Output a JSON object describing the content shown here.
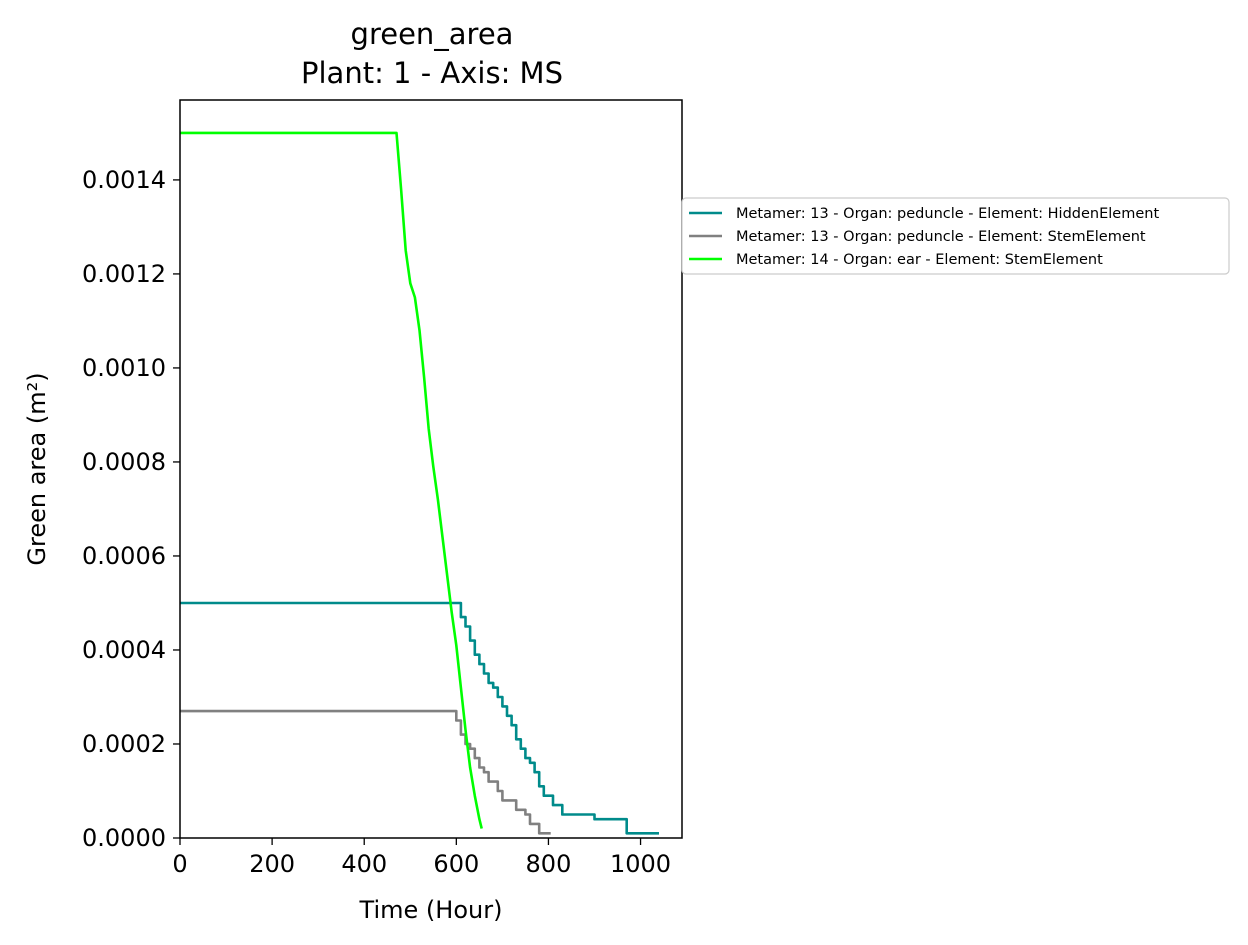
{
  "chart_data": {
    "type": "line",
    "title": "green_area",
    "subtitle": "Plant: 1 - Axis: MS",
    "xlabel": "Time (Hour)",
    "ylabel": "Green area (m²)",
    "xlim": [
      0,
      1090
    ],
    "ylim": [
      0,
      0.00157
    ],
    "xticks": [
      0,
      200,
      400,
      600,
      800,
      1000
    ],
    "xtick_labels": [
      "0",
      "200",
      "400",
      "600",
      "800",
      "1000"
    ],
    "yticks": [
      0,
      0.0002,
      0.0004,
      0.0006,
      0.0008,
      0.001,
      0.0012,
      0.0014
    ],
    "ytick_labels": [
      "0.0000",
      "0.0002",
      "0.0004",
      "0.0006",
      "0.0008",
      "0.0010",
      "0.0012",
      "0.0014"
    ],
    "grid": false,
    "legend_placement": "outside-right",
    "series": [
      {
        "name": "Metamer: 13 - Organ: peduncle - Element: HiddenElement",
        "color": "#008b8b",
        "step": true,
        "x": [
          0,
          600,
          610,
          620,
          630,
          640,
          650,
          660,
          670,
          680,
          690,
          700,
          710,
          720,
          730,
          740,
          750,
          760,
          770,
          780,
          790,
          810,
          830,
          900,
          970,
          1040
        ],
        "y": [
          0.0005,
          0.0005,
          0.00047,
          0.00045,
          0.00042,
          0.00039,
          0.00037,
          0.00035,
          0.00033,
          0.00032,
          0.0003,
          0.00028,
          0.00026,
          0.00024,
          0.00021,
          0.00019,
          0.00017,
          0.00016,
          0.00014,
          0.00011,
          9e-05,
          7e-05,
          5e-05,
          4e-05,
          1e-05,
          1e-05
        ]
      },
      {
        "name": "Metamer: 13 - Organ: peduncle - Element: StemElement",
        "color": "#808080",
        "step": true,
        "x": [
          0,
          590,
          600,
          610,
          620,
          630,
          640,
          650,
          660,
          670,
          690,
          700,
          710,
          730,
          750,
          760,
          770,
          780,
          805
        ],
        "y": [
          0.00027,
          0.00027,
          0.00025,
          0.00022,
          0.0002,
          0.00019,
          0.00017,
          0.00015,
          0.00014,
          0.00012,
          0.0001,
          8e-05,
          8e-05,
          6e-05,
          5e-05,
          3e-05,
          3e-05,
          1e-05,
          1e-05
        ]
      },
      {
        "name": "Metamer: 14 - Organ: ear - Element: StemElement",
        "color": "#00ff00",
        "step": false,
        "x": [
          0,
          470,
          480,
          490,
          500,
          510,
          520,
          530,
          540,
          550,
          560,
          570,
          580,
          590,
          600,
          610,
          620,
          630,
          640,
          650,
          655
        ],
        "y": [
          0.0015,
          0.0015,
          0.00138,
          0.00125,
          0.00118,
          0.00115,
          0.00108,
          0.00098,
          0.00087,
          0.00079,
          0.00072,
          0.00064,
          0.00056,
          0.00048,
          0.00041,
          0.00032,
          0.00023,
          0.00015,
          9e-05,
          4e-05,
          2e-05
        ]
      }
    ]
  }
}
